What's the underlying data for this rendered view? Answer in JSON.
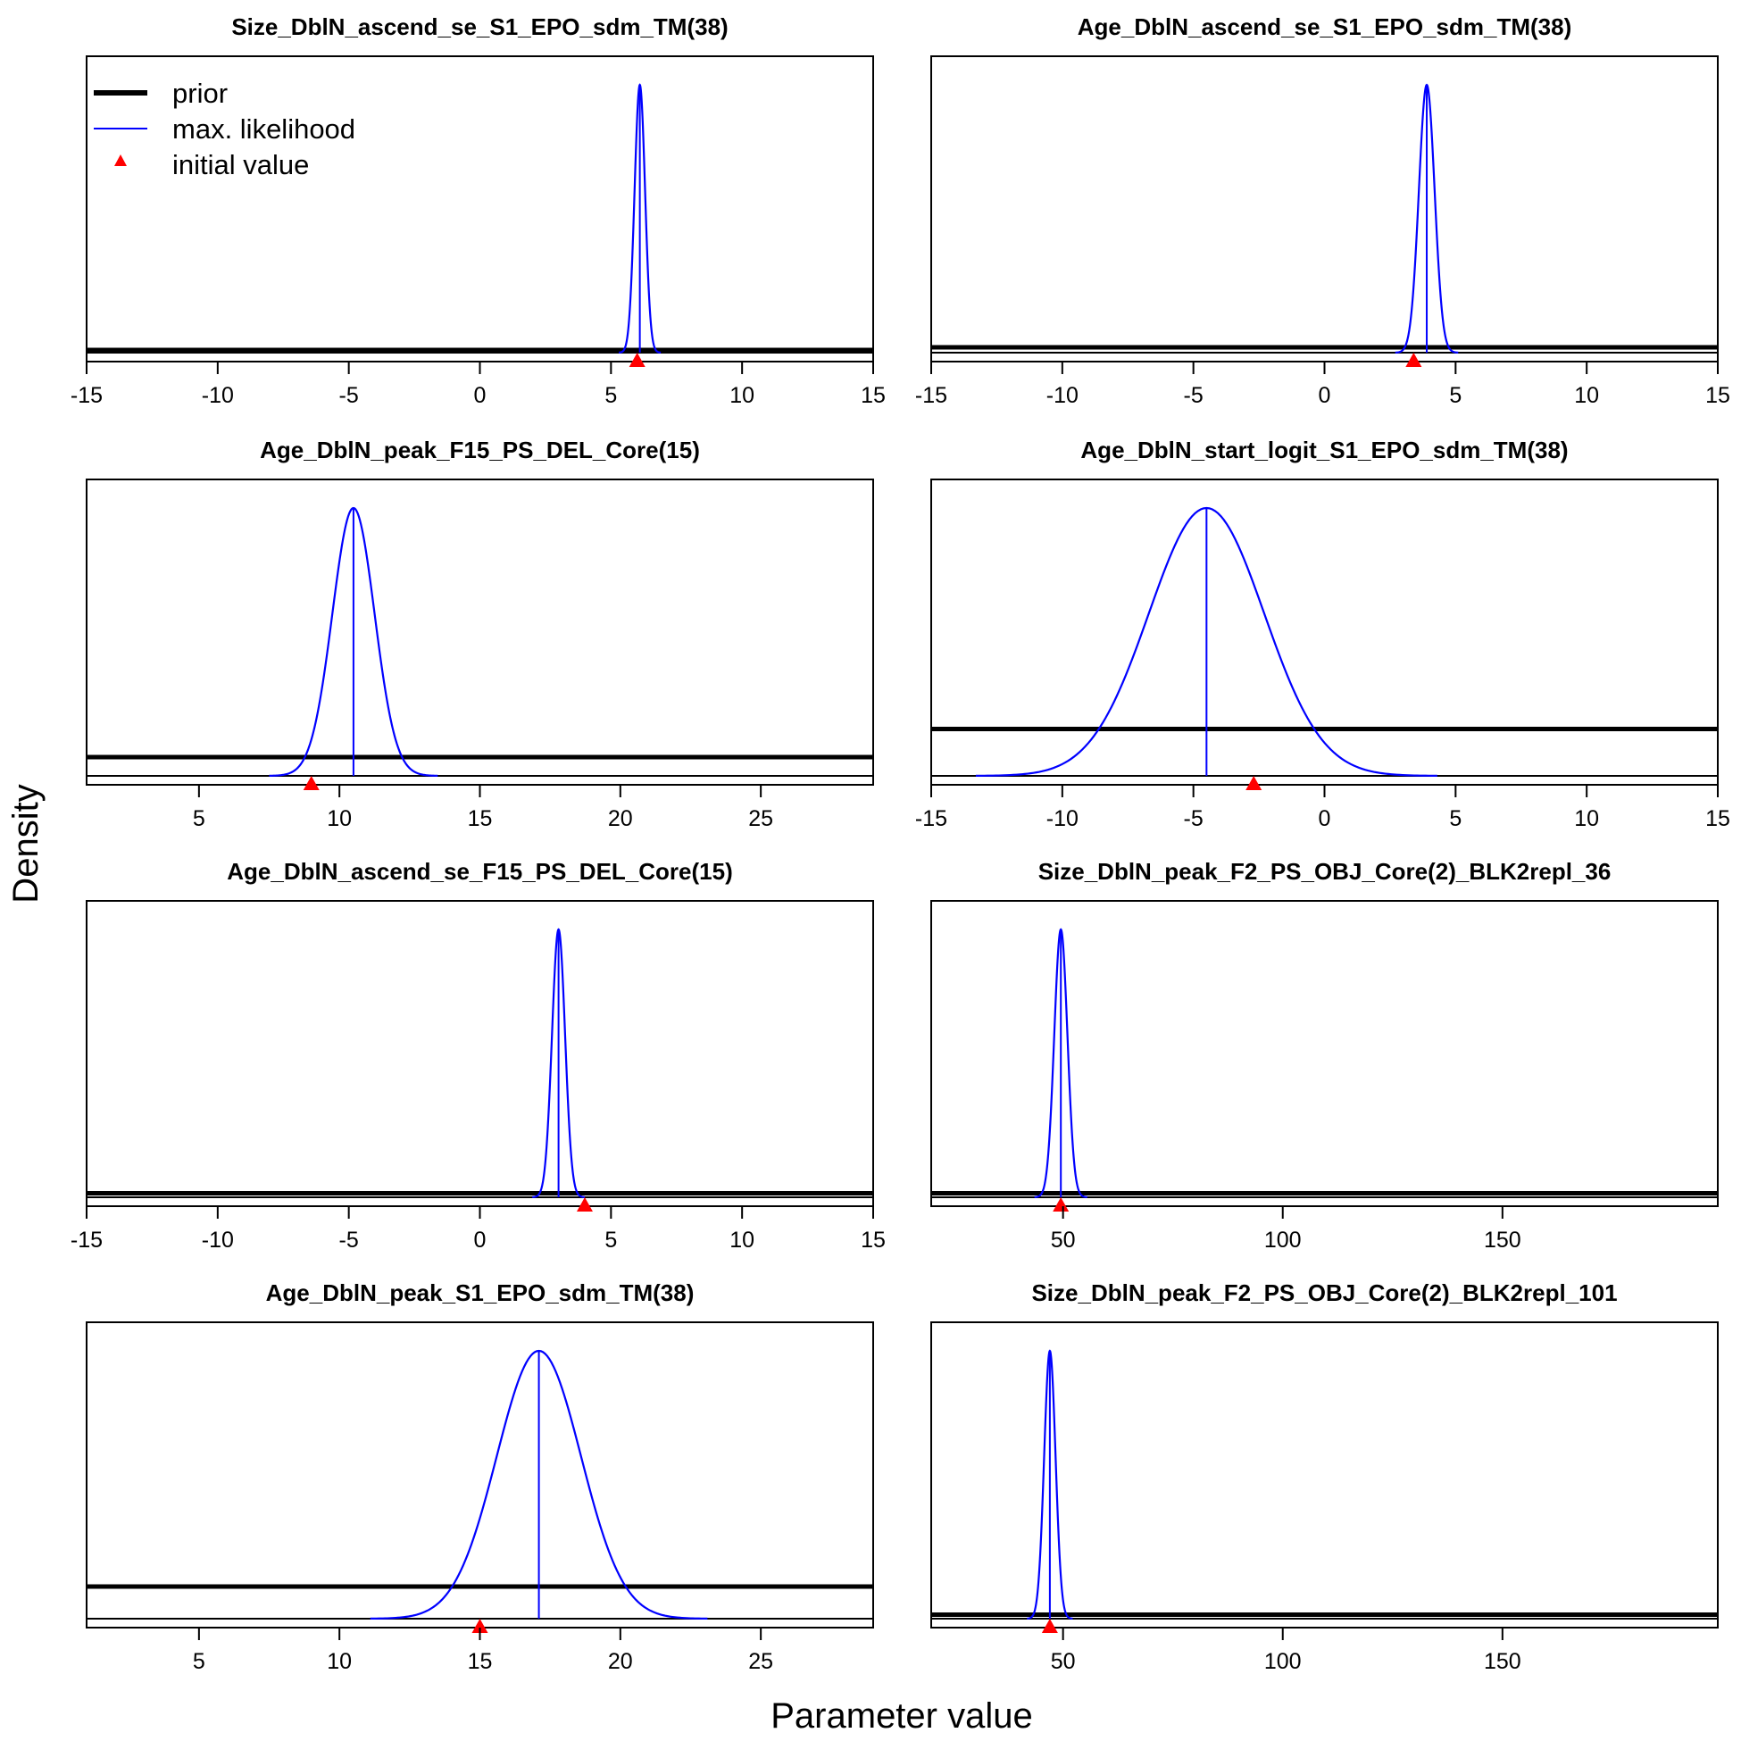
{
  "figure": {
    "xlabel": "Parameter value",
    "ylabel": "Density"
  },
  "legend": {
    "location": "top-left of first panel",
    "items": [
      {
        "label": "prior",
        "color": "#000000",
        "kind": "thick-line"
      },
      {
        "label": "max. likelihood",
        "color": "#0000ff",
        "kind": "thin-line"
      },
      {
        "label": "initial value",
        "color": "#ff0000",
        "kind": "triangle"
      }
    ]
  },
  "colors": {
    "prior": "#000000",
    "mle": "#0000ff",
    "initial": "#ff0000"
  },
  "chart_data": [
    {
      "type": "line",
      "title": "Size_DblN_ascend_se_S1_EPO_sdm_TM(38)",
      "xlim": [
        -15,
        15
      ],
      "xticks": [
        -15,
        -10,
        -5,
        0,
        5,
        10,
        15
      ],
      "mle": 6.1,
      "mle_sd": 0.2,
      "prior_level": 0.01,
      "initial_value": 6.0,
      "series": [
        {
          "name": "prior"
        },
        {
          "name": "max. likelihood"
        },
        {
          "name": "initial value"
        }
      ]
    },
    {
      "type": "line",
      "title": "Age_DblN_ascend_se_S1_EPO_sdm_TM(38)",
      "xlim": [
        -15,
        15
      ],
      "xticks": [
        -15,
        -10,
        -5,
        0,
        5,
        10,
        15
      ],
      "mle": 3.9,
      "mle_sd": 0.3,
      "prior_level": 0.02,
      "initial_value": 3.4
    },
    {
      "type": "line",
      "title": "Age_DblN_peak_F15_PS_DEL_Core(15)",
      "xlim": [
        1,
        29
      ],
      "xticks": [
        5,
        10,
        15,
        20,
        25
      ],
      "mle": 10.5,
      "mle_sd": 0.75,
      "prior_level": 0.07,
      "initial_value": 9.0
    },
    {
      "type": "line",
      "title": "Age_DblN_start_logit_S1_EPO_sdm_TM(38)",
      "xlim": [
        -15,
        15
      ],
      "xticks": [
        -15,
        -10,
        -5,
        0,
        5,
        10,
        15
      ],
      "mle": -4.5,
      "mle_sd": 2.2,
      "prior_level": 0.175,
      "initial_value": -2.7
    },
    {
      "type": "line",
      "title": "Age_DblN_ascend_se_F15_PS_DEL_Core(15)",
      "xlim": [
        -15,
        15
      ],
      "xticks": [
        -15,
        -10,
        -5,
        0,
        5,
        10,
        15
      ],
      "mle": 3.0,
      "mle_sd": 0.25,
      "prior_level": 0.015,
      "initial_value": 4.0
    },
    {
      "type": "line",
      "title": "Size_DblN_peak_F2_PS_OBJ_Core(2)_BLK2repl_36",
      "xlim": [
        20,
        199
      ],
      "xticks": [
        50,
        100,
        150
      ],
      "mle": 49.5,
      "mle_sd": 1.5,
      "prior_level": 0.015,
      "initial_value": 49.5
    },
    {
      "type": "line",
      "title": "Age_DblN_peak_S1_EPO_sdm_TM(38)",
      "xlim": [
        1,
        29
      ],
      "xticks": [
        5,
        10,
        15,
        20,
        25
      ],
      "mle": 17.1,
      "mle_sd": 1.5,
      "prior_level": 0.12,
      "initial_value": 15.0
    },
    {
      "type": "line",
      "title": "Size_DblN_peak_F2_PS_OBJ_Core(2)_BLK2repl_101",
      "xlim": [
        20,
        199
      ],
      "xticks": [
        50,
        100,
        150
      ],
      "mle": 47.0,
      "mle_sd": 1.3,
      "prior_level": 0.015,
      "initial_value": 47.0
    }
  ]
}
